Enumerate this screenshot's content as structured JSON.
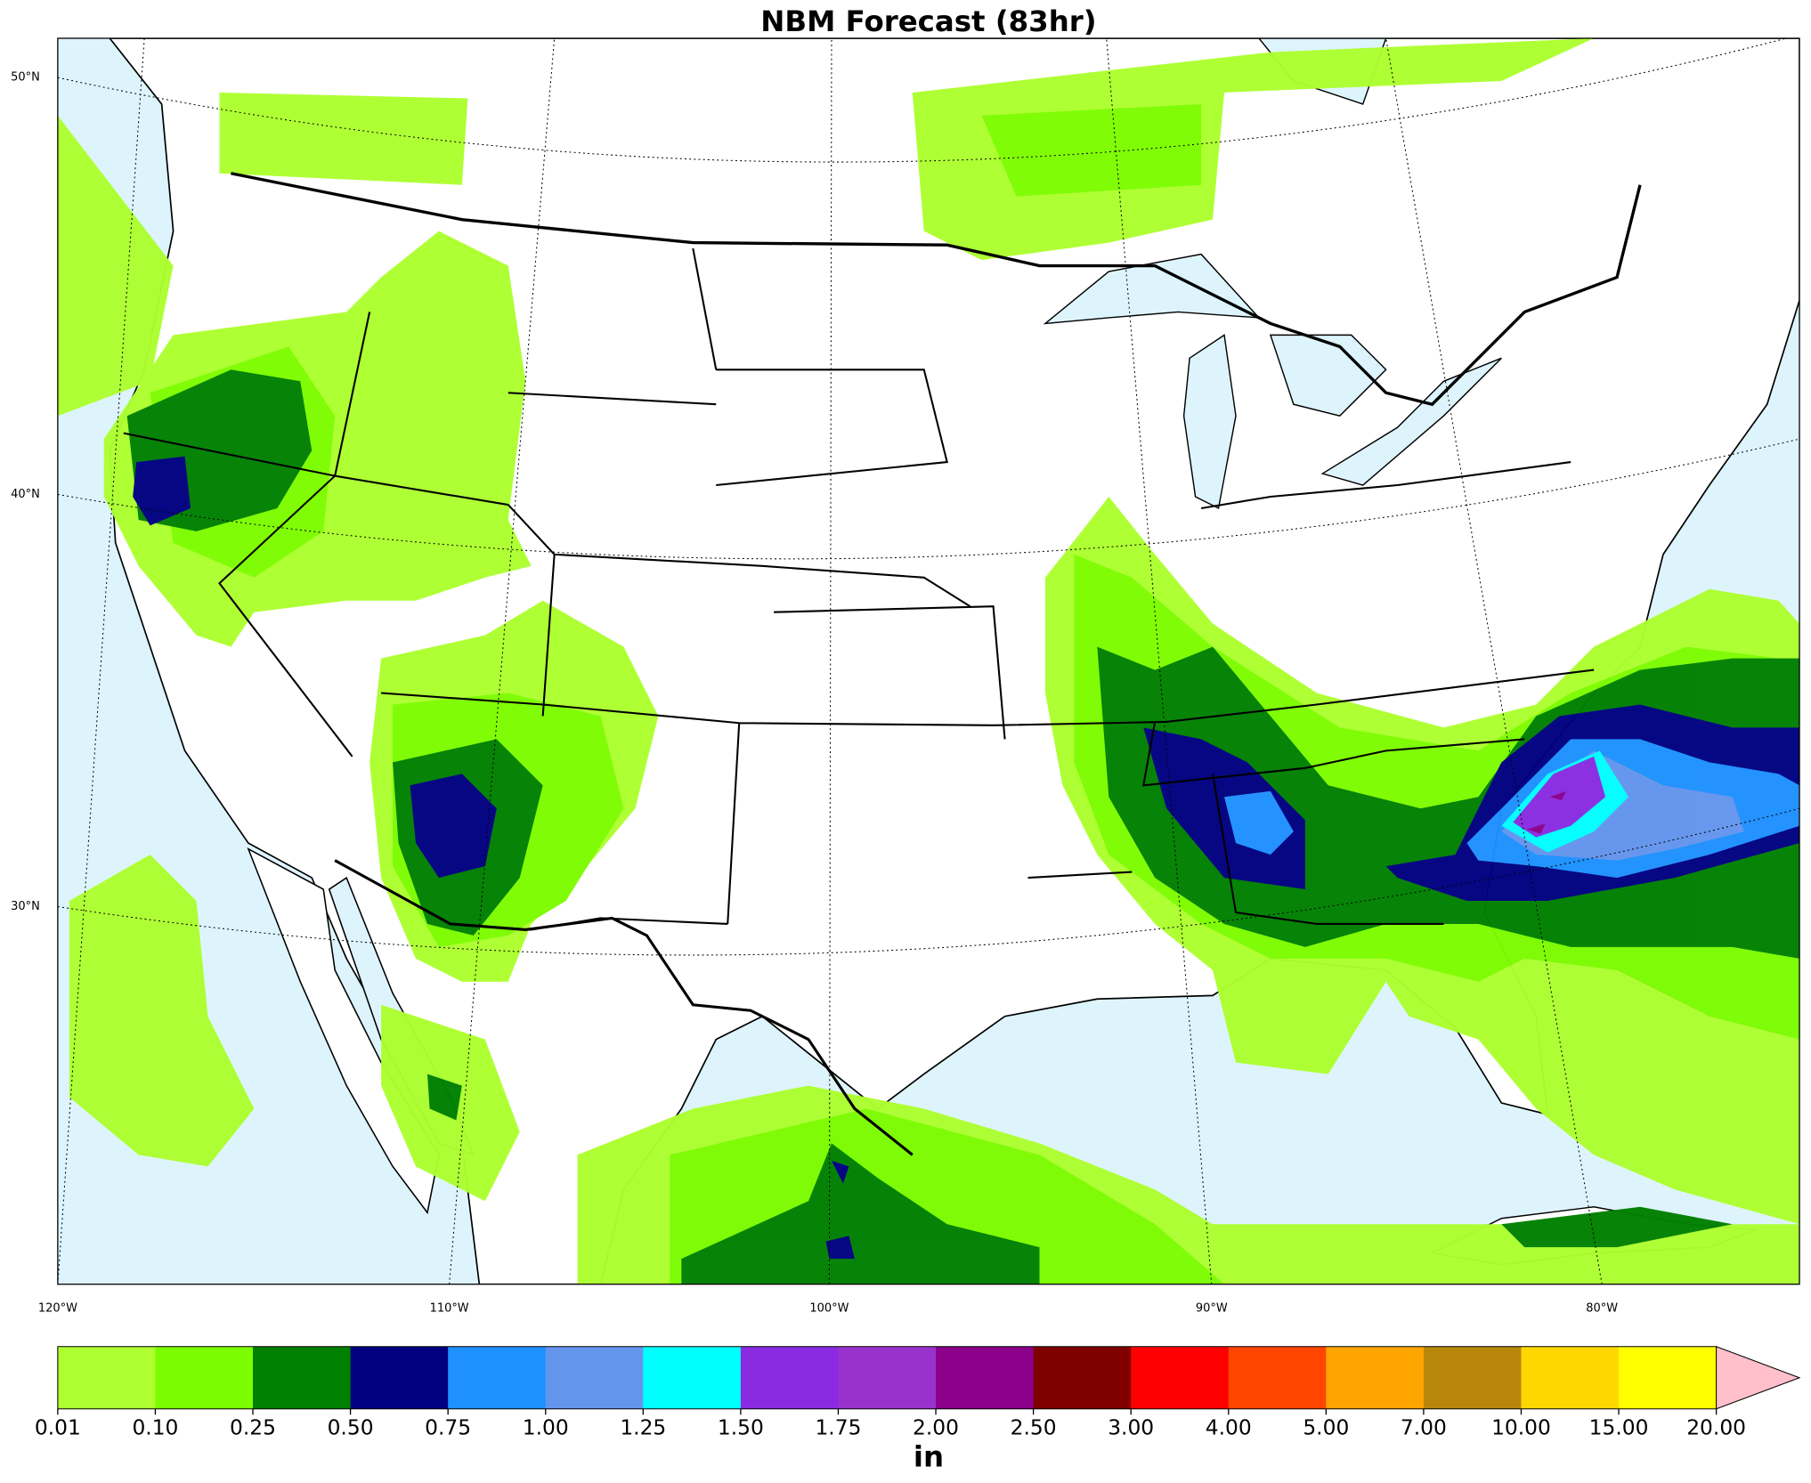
{
  "title": "NBM Forecast (83hr)",
  "map": {
    "lat_labels": [
      "50°N",
      "40°N",
      "30°N"
    ],
    "lon_labels": [
      "120°W",
      "110°W",
      "100°W",
      "90°W",
      "80°W"
    ]
  },
  "colorbar": {
    "unit": "in",
    "colors": [
      "#adff2f",
      "#7cfc00",
      "#008000",
      "#000080",
      "#1e90ff",
      "#6495ed",
      "#00ffff",
      "#8a2be2",
      "#9932cc",
      "#8b008b",
      "#800000",
      "#ff0000",
      "#ff4500",
      "#ffa500",
      "#b8860b",
      "#ffd700",
      "#ffff00"
    ],
    "extend_color": "#ffc0cb",
    "ticks": [
      {
        "value": 0.01,
        "label": "0.01"
      },
      {
        "value": 0.1,
        "label": "0.10"
      },
      {
        "value": 0.25,
        "label": "0.25"
      },
      {
        "value": 0.5,
        "label": "0.50"
      },
      {
        "value": 0.75,
        "label": "0.75"
      },
      {
        "value": 1,
        "label": "1.00"
      },
      {
        "value": 1.25,
        "label": "1.25"
      },
      {
        "value": 1.5,
        "label": "1.50"
      },
      {
        "value": 1.75,
        "label": "1.75"
      },
      {
        "value": 2,
        "label": "2.00"
      },
      {
        "value": 2.5,
        "label": "2.50"
      },
      {
        "value": 3,
        "label": "3.00"
      },
      {
        "value": 4,
        "label": "4.00"
      },
      {
        "value": 5,
        "label": "5.00"
      },
      {
        "value": 7,
        "label": "7.00"
      },
      {
        "value": 10,
        "label": "10.00"
      },
      {
        "value": 15,
        "label": "15.00"
      },
      {
        "value": 20,
        "label": "20.00"
      }
    ]
  }
}
